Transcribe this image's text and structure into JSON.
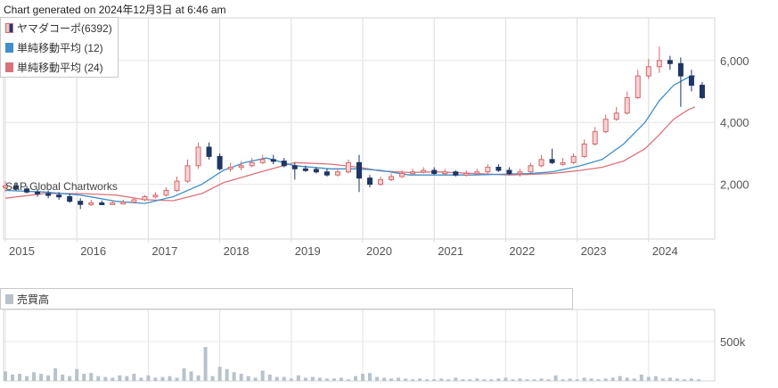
{
  "header": {
    "generated": "Chart generated on 2024年12月3日 at 6:46 am"
  },
  "legend": [
    {
      "label": "ヤマダコーポ(6392)",
      "icon": "candlestick-icon"
    },
    {
      "label": "単純移動平均 (12)",
      "color": "#3f8fc9",
      "icon": "line-swatch-icon"
    },
    {
      "label": "単純移動平均 (24)",
      "color": "#d9737a",
      "icon": "line-swatch-icon"
    }
  ],
  "volume_legend": {
    "label": "売買高",
    "color": "#b8c2cc"
  },
  "watermark": "S&P Global Chartworks",
  "colors": {
    "up": "#d26a6e",
    "up_fill": "#f6d3d5",
    "down": "#1f3564",
    "ma12": "#3f8fc9",
    "ma24": "#d9737a",
    "volume": "#b8c2cc"
  },
  "chart_data": [
    {
      "type": "candlestick",
      "title": "ヤマダコーポ(6392)",
      "x_ticks": [
        "2015",
        "2016",
        "2017",
        "2018",
        "2019",
        "2020",
        "2021",
        "2022",
        "2023",
        "2024"
      ],
      "ylim": [
        200,
        7000
      ],
      "y_ticks": [
        2000,
        4000,
        6000
      ],
      "y_tick_labels": [
        "2,000",
        "4,000",
        "6,000"
      ],
      "grid": true,
      "legend_position": "top-left",
      "series": [
        {
          "name": "単純移動平均 (12)",
          "kind": "line",
          "x": [
            2014.95,
            2015.5,
            2016.0,
            2016.5,
            2016.9,
            2017.3,
            2017.7,
            2018.0,
            2018.3,
            2018.6,
            2019.0,
            2019.5,
            2019.9,
            2020.2,
            2020.6,
            2021.0,
            2021.5,
            2022.0,
            2022.3,
            2022.6,
            2023.0,
            2023.3,
            2023.6,
            2023.9,
            2024.1,
            2024.3,
            2024.5,
            2024.6
          ],
          "values": [
            1800,
            1750,
            1650,
            1450,
            1380,
            1600,
            2000,
            2450,
            2700,
            2850,
            2600,
            2500,
            2500,
            2450,
            2300,
            2300,
            2300,
            2330,
            2350,
            2400,
            2600,
            2800,
            3300,
            4000,
            4700,
            5200,
            5450,
            5500
          ]
        },
        {
          "name": "単純移動平均 (24)",
          "kind": "line",
          "x": [
            2014.95,
            2015.5,
            2016.0,
            2016.5,
            2016.9,
            2017.3,
            2017.7,
            2018.0,
            2018.3,
            2018.6,
            2019.0,
            2019.5,
            2019.9,
            2020.2,
            2020.6,
            2021.0,
            2021.5,
            2022.0,
            2022.3,
            2022.6,
            2023.0,
            2023.3,
            2023.6,
            2023.9,
            2024.1,
            2024.3,
            2024.5,
            2024.6
          ],
          "values": [
            1550,
            1700,
            1700,
            1650,
            1500,
            1470,
            1700,
            2050,
            2250,
            2450,
            2700,
            2650,
            2550,
            2430,
            2380,
            2400,
            2350,
            2300,
            2320,
            2350,
            2450,
            2550,
            2750,
            3150,
            3600,
            4100,
            4400,
            4500
          ]
        }
      ],
      "candles": {
        "x": [
          2014.95,
          2015.1,
          2015.25,
          2015.4,
          2015.55,
          2015.7,
          2015.85,
          2016.0,
          2016.15,
          2016.3,
          2016.45,
          2016.6,
          2016.75,
          2016.9,
          2017.05,
          2017.2,
          2017.35,
          2017.5,
          2017.65,
          2017.8,
          2017.95,
          2018.1,
          2018.25,
          2018.4,
          2018.55,
          2018.7,
          2018.85,
          2019.0,
          2019.15,
          2019.3,
          2019.45,
          2019.6,
          2019.75,
          2019.9,
          2020.05,
          2020.2,
          2020.35,
          2020.5,
          2020.65,
          2020.8,
          2020.95,
          2021.1,
          2021.25,
          2021.4,
          2021.55,
          2021.7,
          2021.85,
          2022.0,
          2022.15,
          2022.3,
          2022.45,
          2022.6,
          2022.75,
          2022.9,
          2023.05,
          2023.2,
          2023.35,
          2023.5,
          2023.65,
          2023.8,
          2023.95,
          2024.1,
          2024.25,
          2024.4,
          2024.55,
          2024.7
        ],
        "open": [
          1900,
          1950,
          1850,
          1750,
          1700,
          1650,
          1600,
          1450,
          1350,
          1400,
          1380,
          1400,
          1420,
          1500,
          1600,
          1650,
          1800,
          2100,
          2600,
          3200,
          2900,
          2500,
          2550,
          2600,
          2700,
          2800,
          2750,
          2600,
          2500,
          2480,
          2400,
          2300,
          2400,
          2700,
          2200,
          2000,
          2150,
          2250,
          2350,
          2400,
          2450,
          2350,
          2400,
          2300,
          2350,
          2400,
          2550,
          2450,
          2350,
          2400,
          2600,
          2800,
          2700,
          2700,
          2900,
          3300,
          3700,
          4100,
          4300,
          4800,
          5500,
          5800,
          6000,
          5900,
          5500,
          5200
        ],
        "close": [
          1950,
          1850,
          1750,
          1700,
          1650,
          1600,
          1450,
          1350,
          1400,
          1380,
          1400,
          1420,
          1500,
          1600,
          1650,
          1800,
          2100,
          2600,
          3200,
          2900,
          2500,
          2550,
          2600,
          2700,
          2800,
          2750,
          2600,
          2500,
          2480,
          2400,
          2300,
          2400,
          2700,
          2200,
          2000,
          2150,
          2250,
          2350,
          2400,
          2450,
          2350,
          2400,
          2300,
          2350,
          2400,
          2550,
          2450,
          2350,
          2400,
          2600,
          2800,
          2700,
          2700,
          2900,
          3300,
          3700,
          4100,
          4300,
          4800,
          5500,
          5800,
          6000,
          5900,
          5500,
          5200,
          4800
        ],
        "high": [
          2100,
          2050,
          1950,
          1850,
          1800,
          1750,
          1700,
          1550,
          1500,
          1480,
          1480,
          1500,
          1550,
          1650,
          1750,
          1900,
          2250,
          2800,
          3350,
          3350,
          3000,
          2700,
          2750,
          2850,
          2950,
          2950,
          2850,
          2700,
          2600,
          2550,
          2500,
          2500,
          2800,
          2950,
          2300,
          2250,
          2350,
          2450,
          2500,
          2550,
          2550,
          2500,
          2450,
          2450,
          2500,
          2650,
          2650,
          2550,
          2500,
          2700,
          2950,
          3150,
          2850,
          3000,
          3450,
          3850,
          4250,
          4500,
          5000,
          5700,
          6050,
          6450,
          6150,
          6100,
          5700,
          5300
        ],
        "low": [
          1750,
          1800,
          1700,
          1600,
          1550,
          1500,
          1400,
          1200,
          1300,
          1330,
          1350,
          1350,
          1380,
          1450,
          1550,
          1600,
          1750,
          2050,
          2500,
          2800,
          2450,
          2400,
          2450,
          2550,
          2650,
          2650,
          2550,
          2150,
          2400,
          2350,
          2250,
          2250,
          2350,
          1750,
          1900,
          1950,
          2100,
          2200,
          2300,
          2350,
          2300,
          2300,
          2250,
          2250,
          2300,
          2350,
          2400,
          2300,
          2250,
          2350,
          2550,
          2650,
          2600,
          2650,
          2850,
          3250,
          3650,
          4050,
          4250,
          4750,
          5400,
          5600,
          5700,
          4500,
          5000,
          4750
        ]
      }
    },
    {
      "type": "bar",
      "title": "売買高",
      "y_ticks": [
        500000
      ],
      "y_tick_labels": [
        "500k"
      ],
      "ylim": [
        0,
        700000
      ],
      "x": [
        2014.95,
        2015.05,
        2015.15,
        2015.25,
        2015.35,
        2015.45,
        2015.55,
        2015.65,
        2015.75,
        2015.85,
        2015.95,
        2016.05,
        2016.15,
        2016.25,
        2016.35,
        2016.45,
        2016.55,
        2016.65,
        2016.75,
        2016.85,
        2016.95,
        2017.05,
        2017.15,
        2017.25,
        2017.35,
        2017.45,
        2017.55,
        2017.65,
        2017.75,
        2017.85,
        2017.95,
        2018.05,
        2018.15,
        2018.25,
        2018.35,
        2018.45,
        2018.55,
        2018.65,
        2018.75,
        2018.85,
        2018.95,
        2019.05,
        2019.15,
        2019.25,
        2019.35,
        2019.45,
        2019.55,
        2019.65,
        2019.75,
        2019.85,
        2019.95,
        2020.05,
        2020.15,
        2020.25,
        2020.35,
        2020.45,
        2020.55,
        2020.65,
        2020.75,
        2020.85,
        2020.95,
        2021.05,
        2021.15,
        2021.25,
        2021.35,
        2021.45,
        2021.55,
        2021.65,
        2021.75,
        2021.85,
        2021.95,
        2022.05,
        2022.15,
        2022.25,
        2022.35,
        2022.45,
        2022.55,
        2022.65,
        2022.75,
        2022.85,
        2022.95,
        2023.05,
        2023.15,
        2023.25,
        2023.35,
        2023.45,
        2023.55,
        2023.65,
        2023.75,
        2023.85,
        2023.95,
        2024.05,
        2024.15,
        2024.25,
        2024.35,
        2024.45,
        2024.55,
        2024.65
      ],
      "values": [
        120000,
        80000,
        90000,
        60000,
        110000,
        90000,
        70000,
        160000,
        80000,
        60000,
        150000,
        90000,
        100000,
        60000,
        50000,
        40000,
        70000,
        60000,
        90000,
        40000,
        70000,
        40000,
        50000,
        60000,
        40000,
        160000,
        120000,
        70000,
        430000,
        60000,
        180000,
        150000,
        110000,
        90000,
        60000,
        40000,
        130000,
        80000,
        50000,
        50000,
        30000,
        70000,
        40000,
        50000,
        40000,
        30000,
        30000,
        40000,
        20000,
        60000,
        90000,
        100000,
        50000,
        40000,
        30000,
        40000,
        30000,
        20000,
        30000,
        20000,
        20000,
        30000,
        20000,
        40000,
        20000,
        20000,
        30000,
        20000,
        20000,
        30000,
        40000,
        20000,
        30000,
        20000,
        20000,
        30000,
        20000,
        70000,
        20000,
        30000,
        20000,
        40000,
        30000,
        20000,
        30000,
        40000,
        60000,
        40000,
        30000,
        80000,
        50000,
        60000,
        30000,
        40000,
        30000,
        20000,
        30000,
        20000
      ]
    }
  ]
}
